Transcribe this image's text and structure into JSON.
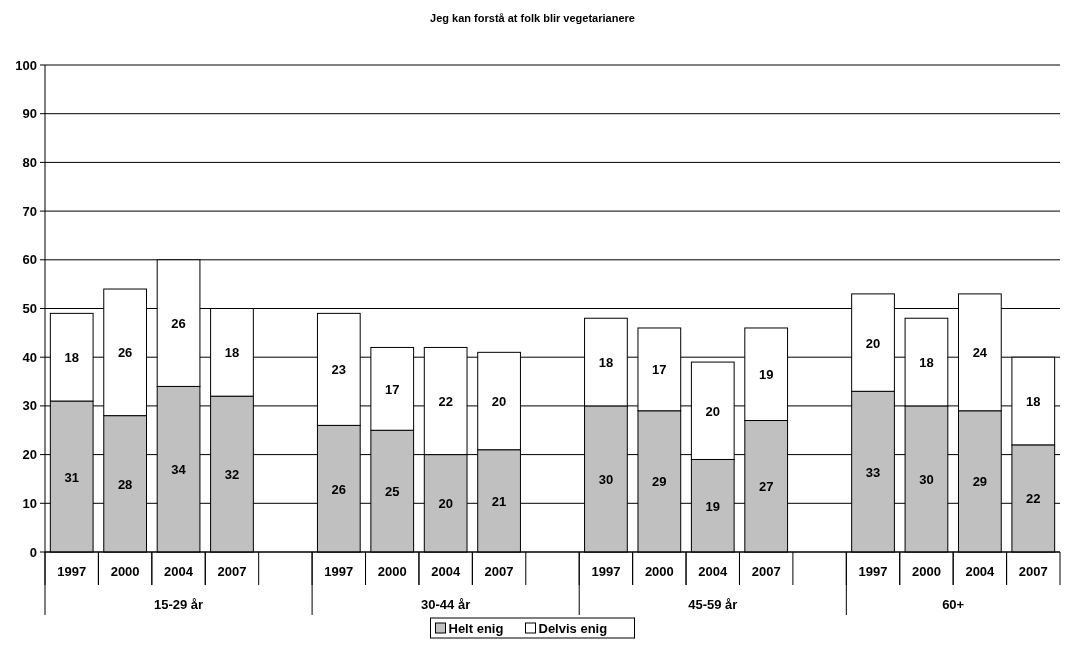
{
  "chart_data": {
    "type": "bar",
    "stacked": true,
    "title": "Jeg kan forstå at folk blir vegetarianere",
    "categories": [
      "1997",
      "2000",
      "2004",
      "2007",
      null,
      "1997",
      "2000",
      "2004",
      "2007",
      null,
      "1997",
      "2000",
      "2004",
      "2007",
      null,
      "1997",
      "2000",
      "2004",
      "2007"
    ],
    "series": [
      {
        "name": "Helt enig",
        "color": "#c0c0c0",
        "values": [
          31,
          28,
          34,
          32,
          null,
          26,
          25,
          20,
          21,
          null,
          30,
          29,
          19,
          27,
          null,
          33,
          30,
          29,
          22
        ]
      },
      {
        "name": "Delvis enig",
        "color": "#ffffff",
        "values": [
          18,
          26,
          26,
          18,
          null,
          23,
          17,
          22,
          20,
          null,
          18,
          17,
          20,
          19,
          null,
          20,
          18,
          24,
          18
        ]
      }
    ],
    "annotations": [
      "15-29 år",
      "30-44 år",
      "45-59 år",
      "60+"
    ],
    "ylim": [
      0,
      100
    ],
    "yticks": [
      0,
      10,
      20,
      30,
      40,
      50,
      60,
      70,
      80,
      90,
      100
    ],
    "grid": "y",
    "data_labels": true,
    "legend": "bottom"
  }
}
